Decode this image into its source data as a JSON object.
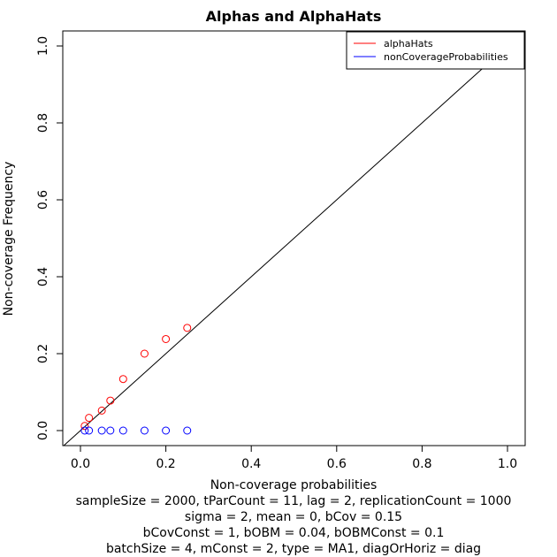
{
  "chart_data": {
    "type": "scatter",
    "title": "Alphas and AlphaHats",
    "xlabel": "Non-coverage probabilities",
    "ylabel": "Non-coverage Frequency",
    "xlim": [
      0,
      1
    ],
    "ylim": [
      0,
      1
    ],
    "x_ticks": [
      "0.0",
      "0.2",
      "0.4",
      "0.6",
      "0.8",
      "1.0"
    ],
    "y_ticks": [
      "0.0",
      "0.2",
      "0.4",
      "0.6",
      "0.8",
      "1.0"
    ],
    "reference_line": "y = x",
    "legend_position": "top-right",
    "series": [
      {
        "name": "alphaHats",
        "color": "#ff0000",
        "marker": "open-circle",
        "points": [
          {
            "x": 0.01,
            "y": 0.012
          },
          {
            "x": 0.02,
            "y": 0.033
          },
          {
            "x": 0.05,
            "y": 0.052
          },
          {
            "x": 0.07,
            "y": 0.078
          },
          {
            "x": 0.1,
            "y": 0.134
          },
          {
            "x": 0.15,
            "y": 0.2
          },
          {
            "x": 0.2,
            "y": 0.238
          },
          {
            "x": 0.25,
            "y": 0.267
          }
        ]
      },
      {
        "name": "nonCoverageProbabilities",
        "color": "#0000ff",
        "marker": "open-circle",
        "points": [
          {
            "x": 0.01,
            "y": 0
          },
          {
            "x": 0.02,
            "y": 0
          },
          {
            "x": 0.05,
            "y": 0
          },
          {
            "x": 0.07,
            "y": 0
          },
          {
            "x": 0.1,
            "y": 0
          },
          {
            "x": 0.15,
            "y": 0
          },
          {
            "x": 0.2,
            "y": 0
          },
          {
            "x": 0.25,
            "y": 0
          }
        ]
      }
    ],
    "subtitles": [
      "sampleSize = 2000, tParCount = 11, lag = 2, replicationCount = 1000",
      "sigma = 2, mean = 0, bCov = 0.15",
      "bCovConst = 1, bOBM = 0.04, bOBMConst = 0.1",
      "batchSize = 4, mConst = 2, type = MA1, diagOrHoriz = diag"
    ]
  }
}
